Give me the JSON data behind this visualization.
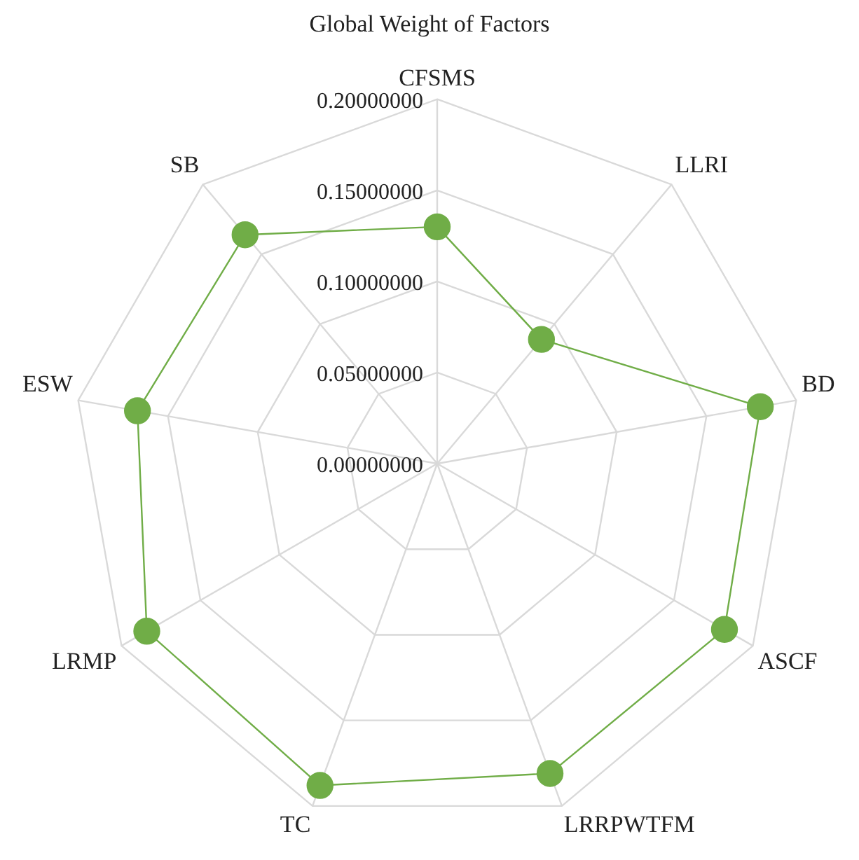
{
  "chart_data": {
    "type": "radar",
    "title": "Global Weight of Factors",
    "categories": [
      "CFSMS",
      "LLRI",
      "BD",
      "ASCF",
      "LRRPWTFM",
      "TC",
      "LRMP",
      "ESW",
      "SB"
    ],
    "series": [
      {
        "color": "#70ad47",
        "values": [
          0.13,
          0.089,
          0.18,
          0.182,
          0.181,
          0.188,
          0.184,
          0.167,
          0.164
        ]
      }
    ],
    "ylim": [
      0,
      0.2
    ],
    "yticks": [
      {
        "value": 0,
        "label": "0.00000000"
      },
      {
        "value": 0.05,
        "label": "0.05000000"
      },
      {
        "value": 0.1,
        "label": "0.10000000"
      },
      {
        "value": 0.15,
        "label": "0.15000000"
      },
      {
        "value": 0.2,
        "label": "0.20000000"
      }
    ],
    "grid": true,
    "legend": false,
    "marker": "circle",
    "line_style": "solid"
  }
}
